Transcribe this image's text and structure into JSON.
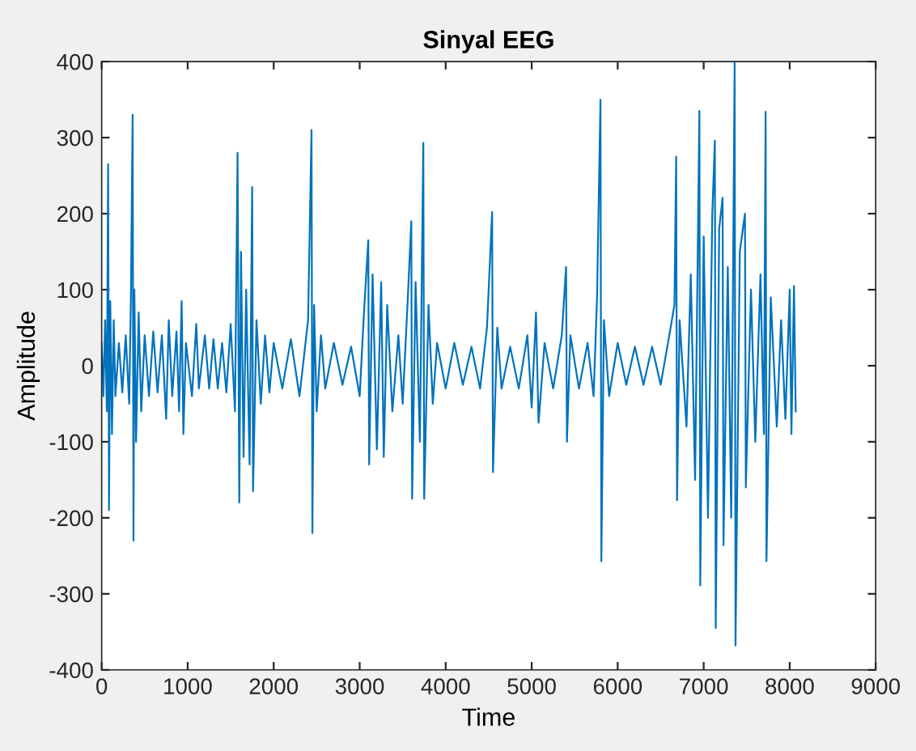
{
  "chart_data": {
    "type": "line",
    "title": "Sinyal EEG",
    "xlabel": "Time",
    "ylabel": "Amplitude",
    "xlim": [
      0,
      9000
    ],
    "xticks": [
      0,
      1000,
      2000,
      3000,
      4000,
      5000,
      6000,
      7000,
      8000,
      9000
    ],
    "ylim": [
      -400,
      400
    ],
    "yticks": [
      -400,
      -300,
      -200,
      -100,
      0,
      100,
      200,
      300,
      400
    ],
    "grid": false,
    "legend": false,
    "marker": "none",
    "line_style": "solid",
    "series": [
      {
        "color": "#0072bd",
        "x": [
          0,
          20,
          40,
          60,
          75,
          85,
          100,
          120,
          140,
          160,
          200,
          240,
          280,
          320,
          340,
          360,
          370,
          380,
          400,
          430,
          460,
          500,
          550,
          600,
          650,
          700,
          750,
          780,
          820,
          870,
          900,
          930,
          950,
          980,
          1050,
          1100,
          1130,
          1200,
          1250,
          1300,
          1350,
          1400,
          1450,
          1500,
          1550,
          1580,
          1600,
          1620,
          1650,
          1680,
          1720,
          1750,
          1760,
          1800,
          1850,
          1900,
          1950,
          2000,
          2100,
          2200,
          2300,
          2400,
          2440,
          2450,
          2470,
          2500,
          2550,
          2600,
          2700,
          2800,
          2900,
          3000,
          3050,
          3100,
          3110,
          3150,
          3200,
          3250,
          3280,
          3320,
          3380,
          3450,
          3500,
          3560,
          3600,
          3610,
          3650,
          3700,
          3740,
          3750,
          3800,
          3850,
          3900,
          4000,
          4100,
          4200,
          4300,
          4400,
          4480,
          4540,
          4550,
          4600,
          4650,
          4750,
          4850,
          4950,
          5000,
          5050,
          5080,
          5150,
          5250,
          5350,
          5400,
          5410,
          5450,
          5550,
          5650,
          5720,
          5760,
          5800,
          5810,
          5840,
          5900,
          6000,
          6100,
          6200,
          6300,
          6400,
          6500,
          6600,
          6660,
          6680,
          6690,
          6720,
          6800,
          6850,
          6900,
          6950,
          6960,
          7000,
          7050,
          7100,
          7130,
          7140,
          7180,
          7220,
          7230,
          7280,
          7320,
          7360,
          7370,
          7420,
          7480,
          7490,
          7550,
          7600,
          7660,
          7700,
          7720,
          7730,
          7780,
          7850,
          7900,
          7950,
          8000,
          8020,
          8050,
          8070
        ],
        "values": [
          30,
          -40,
          60,
          -60,
          265,
          -190,
          85,
          -90,
          60,
          -40,
          30,
          -35,
          40,
          -50,
          90,
          330,
          -230,
          100,
          -100,
          70,
          -60,
          40,
          -40,
          45,
          -35,
          40,
          -70,
          60,
          -40,
          45,
          -60,
          85,
          -90,
          30,
          -40,
          55,
          -30,
          40,
          -30,
          35,
          -30,
          30,
          -35,
          55,
          -60,
          280,
          -180,
          150,
          -120,
          100,
          -130,
          235,
          -165,
          60,
          -50,
          40,
          -35,
          30,
          -30,
          35,
          -40,
          60,
          310,
          -220,
          80,
          -60,
          40,
          -30,
          30,
          -25,
          25,
          -40,
          70,
          165,
          -130,
          120,
          -110,
          110,
          -120,
          80,
          -60,
          40,
          -50,
          90,
          190,
          -175,
          110,
          -100,
          293,
          -175,
          80,
          -50,
          30,
          -30,
          30,
          -25,
          25,
          -30,
          50,
          202,
          -140,
          50,
          -30,
          25,
          -30,
          40,
          -55,
          70,
          -75,
          30,
          -30,
          40,
          130,
          -100,
          40,
          -30,
          30,
          -40,
          90,
          350,
          -257,
          60,
          -40,
          30,
          -25,
          25,
          -25,
          25,
          -25,
          40,
          80,
          275,
          -177,
          60,
          -80,
          120,
          -150,
          335,
          -289,
          170,
          -200,
          200,
          296,
          -345,
          180,
          221,
          -236,
          130,
          -200,
          398,
          -368,
          150,
          200,
          -160,
          100,
          -100,
          120,
          -90,
          334,
          -257,
          90,
          -80,
          60,
          -70,
          100,
          -90,
          105,
          -60
        ]
      }
    ]
  }
}
